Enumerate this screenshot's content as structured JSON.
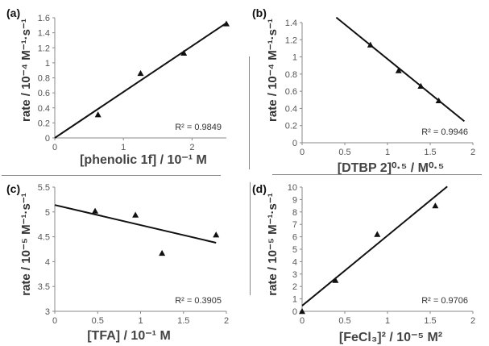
{
  "chart_data": [
    {
      "type": "scatter",
      "panel_label": "(a)",
      "xlabel": "[phenolic 1f] / 10⁻¹ M",
      "ylabel": "rate / 10⁻⁴ M⁻¹·s⁻¹",
      "r2": "R² = 0.9849",
      "xlim": [
        0,
        2.5
      ],
      "ylim": [
        0,
        1.6
      ],
      "xticks": [
        "0",
        "1",
        "2"
      ],
      "xtick_values": [
        0,
        1,
        2
      ],
      "yticks": [
        "0",
        "0.2",
        "0.4",
        "0.6",
        "0.8",
        "1",
        "1.2",
        "1.4",
        "1.6"
      ],
      "ytick_values": [
        0,
        0.2,
        0.4,
        0.6,
        0.8,
        1,
        1.2,
        1.4,
        1.6
      ],
      "points": [
        {
          "x": 0.63,
          "y": 0.31
        },
        {
          "x": 1.25,
          "y": 0.86
        },
        {
          "x": 1.88,
          "y": 1.13
        },
        {
          "x": 2.5,
          "y": 1.52
        }
      ],
      "fit": [
        [
          0,
          0
        ],
        [
          2.5,
          1.53
        ]
      ]
    },
    {
      "type": "scatter",
      "panel_label": "(b)",
      "xlabel": "[DTBP 2]⁰·⁵ / M⁰·⁵",
      "ylabel": "rate / 10⁻⁴ M⁻¹·s⁻¹",
      "r2": "R² = 0.9946",
      "xlim": [
        0,
        2
      ],
      "ylim": [
        0,
        1.4
      ],
      "xticks": [
        "0",
        "0.5",
        "1",
        "1.5",
        "2"
      ],
      "xtick_values": [
        0,
        0.5,
        1,
        1.5,
        2
      ],
      "yticks": [
        "0",
        "0.2",
        "0.4",
        "0.6",
        "0.8",
        "1",
        "1.2",
        "1.4"
      ],
      "ytick_values": [
        0,
        0.2,
        0.4,
        0.6,
        0.8,
        1,
        1.2,
        1.4
      ],
      "points": [
        {
          "x": 0.8,
          "y": 1.14
        },
        {
          "x": 1.13,
          "y": 0.84
        },
        {
          "x": 1.39,
          "y": 0.66
        },
        {
          "x": 1.6,
          "y": 0.49
        }
      ],
      "fit": [
        [
          0.4,
          1.46
        ],
        [
          1.9,
          0.25
        ]
      ]
    },
    {
      "type": "scatter",
      "panel_label": "(c)",
      "xlabel": "[TFA] / 10⁻¹ M",
      "ylabel": "rate / 10⁻⁵ M⁻¹·s⁻¹",
      "r2": "R² = 0.3905",
      "xlim": [
        0,
        2
      ],
      "ylim": [
        3,
        5.5
      ],
      "xticks": [
        "0",
        "0.5",
        "1",
        "1.5",
        "2"
      ],
      "xtick_values": [
        0,
        0.5,
        1,
        1.5,
        2
      ],
      "yticks": [
        "3",
        "3.5",
        "4",
        "4.5",
        "5",
        "5.5"
      ],
      "ytick_values": [
        3,
        3.5,
        4,
        4.5,
        5,
        5.5
      ],
      "points": [
        {
          "x": 0.47,
          "y": 5.02
        },
        {
          "x": 0.94,
          "y": 4.94
        },
        {
          "x": 1.25,
          "y": 4.17
        },
        {
          "x": 1.88,
          "y": 4.54
        }
      ],
      "fit": [
        [
          0,
          5.14
        ],
        [
          1.88,
          4.38
        ]
      ]
    },
    {
      "type": "scatter",
      "panel_label": "(d)",
      "xlabel": "[FeCl₃]² / 10⁻⁵ M²",
      "ylabel": "rate / 10⁻⁵ M⁻¹·s⁻¹",
      "r2": "R² = 0.9706",
      "xlim": [
        0,
        2
      ],
      "ylim": [
        0,
        10
      ],
      "xticks": [
        "0",
        "0.5",
        "1",
        "1.5",
        "2"
      ],
      "xtick_values": [
        0,
        0.5,
        1,
        1.5,
        2
      ],
      "yticks": [
        "0",
        "1",
        "2",
        "3",
        "4",
        "5",
        "6",
        "7",
        "8",
        "9",
        "10"
      ],
      "ytick_values": [
        0,
        1,
        2,
        3,
        4,
        5,
        6,
        7,
        8,
        9,
        10
      ],
      "points": [
        {
          "x": 0,
          "y": 0
        },
        {
          "x": 0.39,
          "y": 2.5
        },
        {
          "x": 0.88,
          "y": 6.2
        },
        {
          "x": 1.56,
          "y": 8.5
        }
      ],
      "fit": [
        [
          0,
          0.45
        ],
        [
          1.7,
          10.05
        ]
      ]
    }
  ]
}
